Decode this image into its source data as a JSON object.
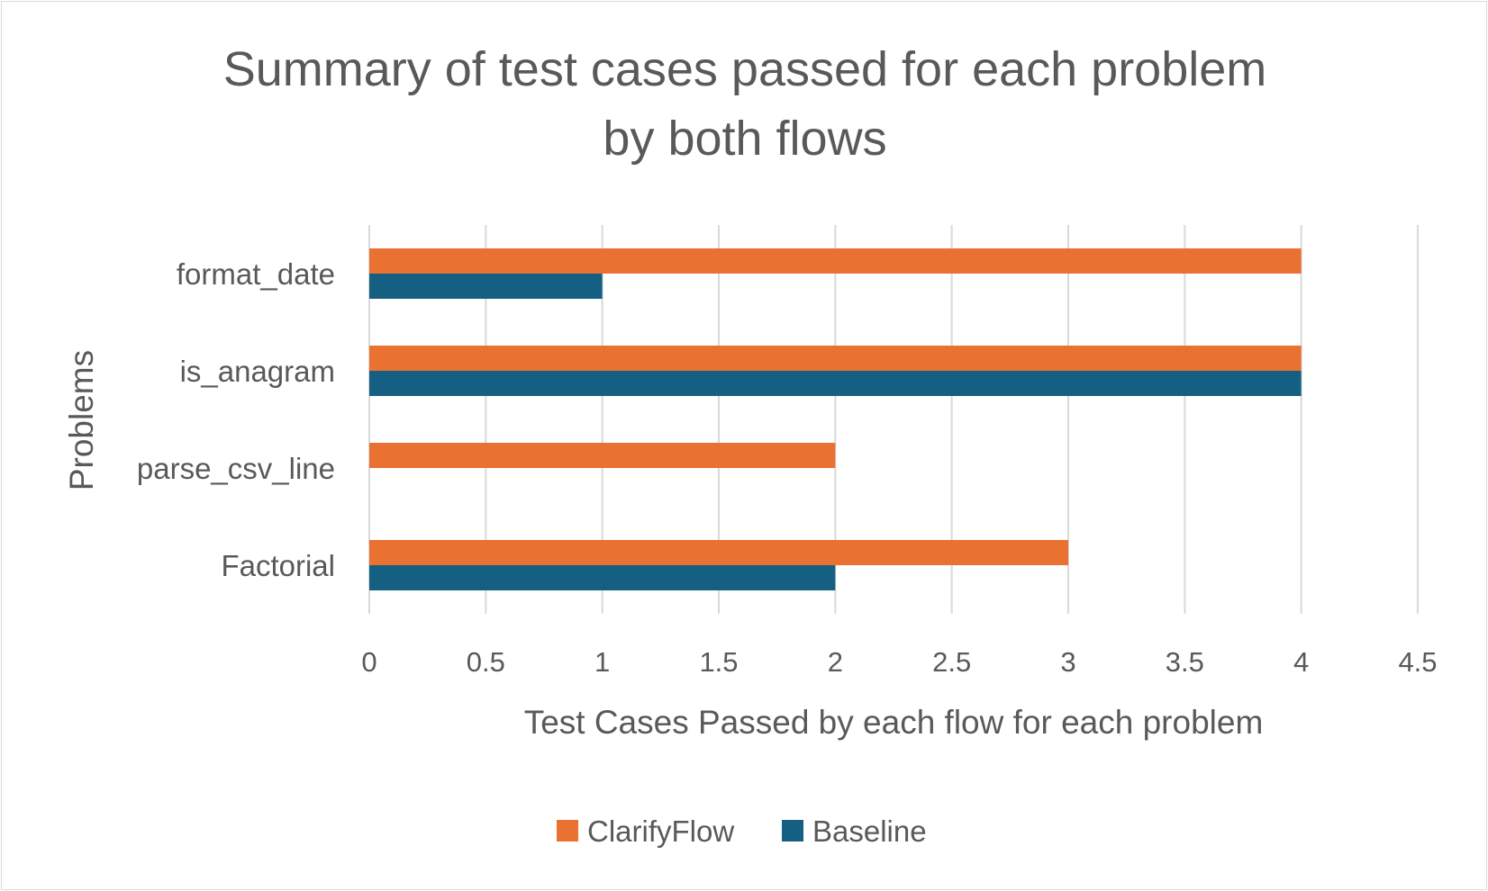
{
  "chart_data": {
    "type": "bar",
    "orientation": "horizontal",
    "title_lines": [
      "Summary of test cases passed for each problem",
      "by both flows"
    ],
    "xlabel": "Test Cases Passed by each flow for each problem",
    "ylabel": "Problems",
    "categories": [
      "format_date",
      "is_anagram",
      "parse_csv_line",
      "Factorial"
    ],
    "series": [
      {
        "name": "ClarifyFlow",
        "color": "#E97132",
        "values": [
          4,
          4,
          2,
          3
        ]
      },
      {
        "name": "Baseline",
        "color": "#156082",
        "values": [
          1,
          4,
          0,
          2
        ]
      }
    ],
    "xlim": [
      0,
      4.5
    ],
    "xticks": [
      "0",
      "0.5",
      "1",
      "1.5",
      "2",
      "2.5",
      "3",
      "3.5",
      "4",
      "4.5"
    ],
    "grid": true,
    "legend_position": "bottom"
  }
}
